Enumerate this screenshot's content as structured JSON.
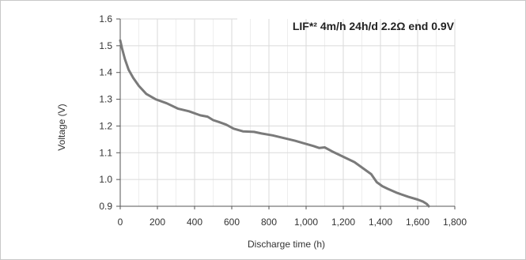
{
  "chart_data": {
    "type": "line",
    "title": "LIF*² 4m/h 24h/d 2.2Ω end 0.9V",
    "xlabel": "Discharge time (h)",
    "ylabel": "Voltage (V)",
    "xlim": [
      0,
      1800
    ],
    "ylim": [
      0.9,
      1.6
    ],
    "xticks": [
      0,
      200,
      400,
      600,
      800,
      1000,
      1200,
      1400,
      1600,
      1800
    ],
    "xtick_labels": [
      "0",
      "200",
      "400",
      "600",
      "800",
      "1,000",
      "1,200",
      "1,400",
      "1,600",
      "1,800"
    ],
    "yticks": [
      0.9,
      1.0,
      1.1,
      1.2,
      1.3,
      1.4,
      1.5,
      1.6
    ],
    "ytick_labels": [
      "0.9",
      "1.0",
      "1.1",
      "1.2",
      "1.3",
      "1.4",
      "1.5",
      "1.6"
    ],
    "grid": true,
    "x_minor_step": 100,
    "series": [
      {
        "color": "#7a7a7a",
        "x": [
          0,
          10,
          25,
          45,
          70,
          100,
          140,
          190,
          250,
          310,
          370,
          430,
          470,
          500,
          530,
          570,
          610,
          660,
          720,
          760,
          820,
          880,
          940,
          990,
          1040,
          1070,
          1100,
          1140,
          1200,
          1260,
          1300,
          1350,
          1380,
          1410,
          1440,
          1490,
          1550,
          1600,
          1630,
          1650,
          1660
        ],
        "y": [
          1.52,
          1.49,
          1.45,
          1.41,
          1.38,
          1.35,
          1.32,
          1.3,
          1.285,
          1.265,
          1.255,
          1.24,
          1.235,
          1.222,
          1.215,
          1.205,
          1.19,
          1.18,
          1.178,
          1.172,
          1.165,
          1.155,
          1.145,
          1.135,
          1.125,
          1.118,
          1.12,
          1.105,
          1.085,
          1.065,
          1.045,
          1.02,
          0.99,
          0.975,
          0.965,
          0.95,
          0.935,
          0.925,
          0.917,
          0.908,
          0.9
        ]
      }
    ]
  }
}
